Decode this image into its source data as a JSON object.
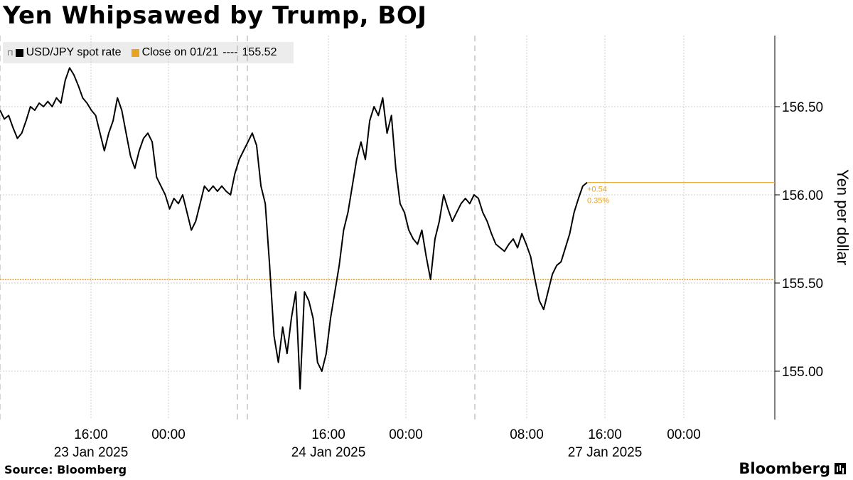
{
  "title": "Yen Whipsawed by Trump, BOJ",
  "legend": {
    "series_label": "USD/JPY spot rate",
    "close_label": "Close on 01/21",
    "close_dashes": "----",
    "close_value": "155.52"
  },
  "source": "Source:  Bloomberg",
  "brand": "Bloomberg",
  "colors": {
    "line": "#000000",
    "close": "#e8a320",
    "grid": "#cccccc"
  },
  "annotation": {
    "change": "+0.54",
    "pct": "0.35%"
  },
  "chart_data": {
    "type": "line",
    "title": "Yen Whipsawed by Trump, BOJ",
    "ylabel": "Yen per dollar",
    "xlabel": "",
    "ylim": [
      154.75,
      156.9
    ],
    "yticks": [
      "156.50",
      "156.00",
      "155.50",
      "155.00"
    ],
    "yticks_values": [
      156.5,
      156.0,
      155.5,
      155.0
    ],
    "xticks": [
      {
        "time": "16:00",
        "date": "23 Jan 2025"
      },
      {
        "time": "00:00",
        "date": ""
      },
      {
        "time": "16:00",
        "date": "24 Jan 2025"
      },
      {
        "time": "00:00",
        "date": ""
      },
      {
        "time": "08:00",
        "date": ""
      },
      {
        "time": "16:00",
        "date": "27 Jan 2025"
      },
      {
        "time": "00:00",
        "date": ""
      }
    ],
    "reference_line": {
      "label": "Close on 01/21",
      "value": 155.52
    },
    "grid": true,
    "legend_position": "top-left",
    "series": [
      {
        "name": "USD/JPY spot rate",
        "values": [
          156.48,
          156.43,
          156.45,
          156.38,
          156.32,
          156.35,
          156.42,
          156.5,
          156.48,
          156.52,
          156.5,
          156.53,
          156.5,
          156.55,
          156.52,
          156.65,
          156.72,
          156.68,
          156.62,
          156.55,
          156.52,
          156.48,
          156.45,
          156.35,
          156.25,
          156.35,
          156.42,
          156.55,
          156.48,
          156.35,
          156.22,
          156.15,
          156.25,
          156.32,
          156.35,
          156.3,
          156.1,
          156.05,
          156.0,
          155.92,
          155.98,
          155.95,
          156.0,
          155.9,
          155.8,
          155.85,
          155.95,
          156.05,
          156.02,
          156.05,
          156.02,
          156.05,
          156.02,
          156.0,
          156.12,
          156.2,
          156.25,
          156.3,
          156.35,
          156.28,
          156.05,
          155.95,
          155.6,
          155.2,
          155.05,
          155.25,
          155.1,
          155.3,
          155.45,
          154.9,
          155.45,
          155.4,
          155.3,
          155.05,
          155.0,
          155.1,
          155.3,
          155.45,
          155.6,
          155.8,
          155.9,
          156.05,
          156.2,
          156.3,
          156.2,
          156.42,
          156.5,
          156.45,
          156.55,
          156.35,
          156.45,
          156.15,
          155.95,
          155.9,
          155.8,
          155.75,
          155.72,
          155.8,
          155.65,
          155.52,
          155.75,
          155.85,
          156.0,
          155.92,
          155.85,
          155.9,
          155.95,
          155.98,
          155.95,
          156.0,
          155.98,
          155.9,
          155.85,
          155.78,
          155.72,
          155.7,
          155.68,
          155.72,
          155.75,
          155.7,
          155.78,
          155.72,
          155.65,
          155.52,
          155.4,
          155.35,
          155.45,
          155.55,
          155.6,
          155.62,
          155.7,
          155.78,
          155.9,
          155.98,
          156.05,
          156.07
        ]
      }
    ]
  },
  "axis_label": "Yen per dollar"
}
